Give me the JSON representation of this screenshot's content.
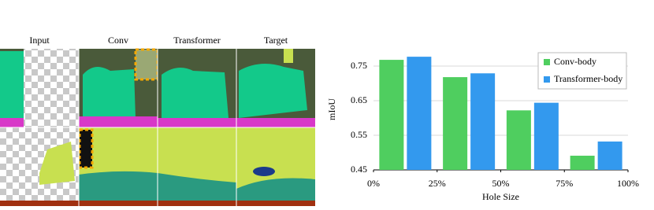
{
  "image_grid": {
    "columns": [
      "Input",
      "Conv",
      "Transformer",
      "Target"
    ]
  },
  "chart_data": {
    "type": "bar",
    "x": [
      12.5,
      37.5,
      62.5,
      87.5
    ],
    "xlim": [
      0,
      100
    ],
    "xticks": [
      {
        "value": 0,
        "label": "0%"
      },
      {
        "value": 25,
        "label": "25%"
      },
      {
        "value": 50,
        "label": "50%"
      },
      {
        "value": 75,
        "label": "75%"
      },
      {
        "value": 100,
        "label": "100%"
      }
    ],
    "ylim": [
      0.45,
      0.8
    ],
    "yticks": [
      0.45,
      0.55,
      0.65,
      0.75
    ],
    "xlabel": "Hole Size",
    "ylabel": "mIoU",
    "grid": true,
    "legend": "upper right",
    "series": [
      {
        "name": "Conv-body",
        "color": "#4fce5f",
        "values": [
          0.768,
          0.718,
          0.622,
          0.491
        ]
      },
      {
        "name": "Transformer-body",
        "color": "#3399ee",
        "values": [
          0.777,
          0.729,
          0.644,
          0.532
        ]
      }
    ]
  }
}
